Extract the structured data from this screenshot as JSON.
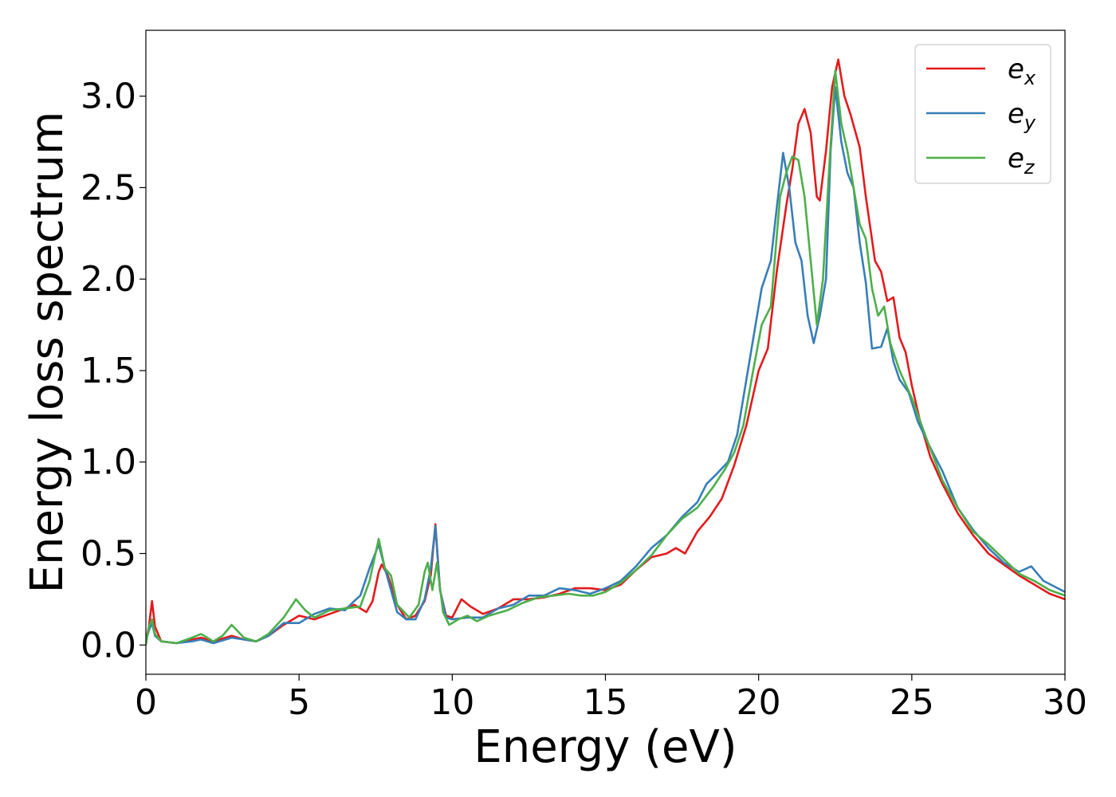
{
  "chart_data": {
    "type": "line",
    "xlabel": "Energy (eV)",
    "ylabel": "Energy loss spectrum",
    "xlim": [
      0,
      30
    ],
    "ylim": [
      -0.16,
      3.36
    ],
    "xticks": [
      0,
      5,
      10,
      15,
      20,
      25,
      30
    ],
    "xtick_labels": [
      "0",
      "5",
      "10",
      "15",
      "20",
      "25",
      "30"
    ],
    "yticks": [
      0.0,
      0.5,
      1.0,
      1.5,
      2.0,
      2.5,
      3.0
    ],
    "ytick_labels": [
      "0.0",
      "0.5",
      "1.0",
      "1.5",
      "2.0",
      "2.5",
      "3.0"
    ],
    "grid": false,
    "legend_position": "top-right",
    "series": [
      {
        "name": "e_x",
        "label_base": "e",
        "label_sub": "x",
        "color": "#e41a1c",
        "points": [
          [
            0,
            0.02
          ],
          [
            0.1,
            0.1
          ],
          [
            0.2,
            0.24
          ],
          [
            0.3,
            0.1
          ],
          [
            0.5,
            0.02
          ],
          [
            1.0,
            0.01
          ],
          [
            1.5,
            0.03
          ],
          [
            1.8,
            0.04
          ],
          [
            2.2,
            0.02
          ],
          [
            2.8,
            0.05
          ],
          [
            3.2,
            0.03
          ],
          [
            3.6,
            0.02
          ],
          [
            4.0,
            0.05
          ],
          [
            4.5,
            0.11
          ],
          [
            5.0,
            0.16
          ],
          [
            5.5,
            0.14
          ],
          [
            6.0,
            0.17
          ],
          [
            6.5,
            0.2
          ],
          [
            6.8,
            0.22
          ],
          [
            7.0,
            0.2
          ],
          [
            7.2,
            0.18
          ],
          [
            7.4,
            0.24
          ],
          [
            7.6,
            0.4
          ],
          [
            7.7,
            0.44
          ],
          [
            7.9,
            0.38
          ],
          [
            8.2,
            0.22
          ],
          [
            8.5,
            0.14
          ],
          [
            8.8,
            0.16
          ],
          [
            9.1,
            0.24
          ],
          [
            9.3,
            0.38
          ],
          [
            9.45,
            0.66
          ],
          [
            9.6,
            0.3
          ],
          [
            9.8,
            0.16
          ],
          [
            10.0,
            0.15
          ],
          [
            10.3,
            0.25
          ],
          [
            10.6,
            0.21
          ],
          [
            11.0,
            0.17
          ],
          [
            11.5,
            0.2
          ],
          [
            12.0,
            0.25
          ],
          [
            12.5,
            0.25
          ],
          [
            13.0,
            0.26
          ],
          [
            13.5,
            0.28
          ],
          [
            14.0,
            0.31
          ],
          [
            14.5,
            0.31
          ],
          [
            15.0,
            0.3
          ],
          [
            15.5,
            0.33
          ],
          [
            16.0,
            0.41
          ],
          [
            16.5,
            0.48
          ],
          [
            17.0,
            0.5
          ],
          [
            17.3,
            0.53
          ],
          [
            17.6,
            0.5
          ],
          [
            18.0,
            0.62
          ],
          [
            18.4,
            0.7
          ],
          [
            18.8,
            0.8
          ],
          [
            19.2,
            0.98
          ],
          [
            19.6,
            1.2
          ],
          [
            20.0,
            1.5
          ],
          [
            20.3,
            1.62
          ],
          [
            20.6,
            2.05
          ],
          [
            20.9,
            2.4
          ],
          [
            21.1,
            2.6
          ],
          [
            21.3,
            2.85
          ],
          [
            21.5,
            2.93
          ],
          [
            21.7,
            2.8
          ],
          [
            21.9,
            2.45
          ],
          [
            22.0,
            2.43
          ],
          [
            22.2,
            2.7
          ],
          [
            22.4,
            3.05
          ],
          [
            22.6,
            3.2
          ],
          [
            22.8,
            3.0
          ],
          [
            23.0,
            2.9
          ],
          [
            23.3,
            2.72
          ],
          [
            23.5,
            2.45
          ],
          [
            23.8,
            2.1
          ],
          [
            24.0,
            2.04
          ],
          [
            24.2,
            1.88
          ],
          [
            24.4,
            1.9
          ],
          [
            24.6,
            1.68
          ],
          [
            24.8,
            1.6
          ],
          [
            25.0,
            1.42
          ],
          [
            25.3,
            1.2
          ],
          [
            25.6,
            1.03
          ],
          [
            26.0,
            0.88
          ],
          [
            26.5,
            0.72
          ],
          [
            27.0,
            0.6
          ],
          [
            27.5,
            0.5
          ],
          [
            28.0,
            0.44
          ],
          [
            28.5,
            0.38
          ],
          [
            29.0,
            0.33
          ],
          [
            29.5,
            0.28
          ],
          [
            30.0,
            0.25
          ]
        ]
      },
      {
        "name": "e_y",
        "label_base": "e",
        "label_sub": "y",
        "color": "#377eb8",
        "points": [
          [
            0,
            0.02
          ],
          [
            0.1,
            0.08
          ],
          [
            0.2,
            0.12
          ],
          [
            0.3,
            0.05
          ],
          [
            0.5,
            0.02
          ],
          [
            1.0,
            0.01
          ],
          [
            1.5,
            0.02
          ],
          [
            1.8,
            0.03
          ],
          [
            2.2,
            0.01
          ],
          [
            2.8,
            0.04
          ],
          [
            3.2,
            0.03
          ],
          [
            3.6,
            0.02
          ],
          [
            4.0,
            0.05
          ],
          [
            4.5,
            0.12
          ],
          [
            5.0,
            0.12
          ],
          [
            5.5,
            0.17
          ],
          [
            6.0,
            0.2
          ],
          [
            6.5,
            0.19
          ],
          [
            6.8,
            0.24
          ],
          [
            7.0,
            0.27
          ],
          [
            7.3,
            0.42
          ],
          [
            7.6,
            0.55
          ],
          [
            7.8,
            0.42
          ],
          [
            8.0,
            0.3
          ],
          [
            8.2,
            0.18
          ],
          [
            8.5,
            0.14
          ],
          [
            8.8,
            0.14
          ],
          [
            9.1,
            0.25
          ],
          [
            9.3,
            0.42
          ],
          [
            9.45,
            0.65
          ],
          [
            9.6,
            0.3
          ],
          [
            9.8,
            0.15
          ],
          [
            10.0,
            0.14
          ],
          [
            10.5,
            0.15
          ],
          [
            11.0,
            0.15
          ],
          [
            11.5,
            0.2
          ],
          [
            12.0,
            0.22
          ],
          [
            12.5,
            0.27
          ],
          [
            13.0,
            0.27
          ],
          [
            13.5,
            0.31
          ],
          [
            14.0,
            0.3
          ],
          [
            14.5,
            0.28
          ],
          [
            15.0,
            0.31
          ],
          [
            15.5,
            0.35
          ],
          [
            16.0,
            0.43
          ],
          [
            16.5,
            0.53
          ],
          [
            17.0,
            0.6
          ],
          [
            17.5,
            0.7
          ],
          [
            18.0,
            0.78
          ],
          [
            18.3,
            0.88
          ],
          [
            18.6,
            0.93
          ],
          [
            19.0,
            1.0
          ],
          [
            19.3,
            1.15
          ],
          [
            19.6,
            1.45
          ],
          [
            19.9,
            1.75
          ],
          [
            20.1,
            1.95
          ],
          [
            20.4,
            2.1
          ],
          [
            20.6,
            2.4
          ],
          [
            20.8,
            2.69
          ],
          [
            21.0,
            2.5
          ],
          [
            21.2,
            2.2
          ],
          [
            21.4,
            2.1
          ],
          [
            21.6,
            1.8
          ],
          [
            21.8,
            1.65
          ],
          [
            22.0,
            1.8
          ],
          [
            22.2,
            2.0
          ],
          [
            22.35,
            2.7
          ],
          [
            22.5,
            3.05
          ],
          [
            22.7,
            2.75
          ],
          [
            22.9,
            2.58
          ],
          [
            23.1,
            2.5
          ],
          [
            23.3,
            2.2
          ],
          [
            23.5,
            1.98
          ],
          [
            23.7,
            1.62
          ],
          [
            24.0,
            1.63
          ],
          [
            24.2,
            1.73
          ],
          [
            24.4,
            1.55
          ],
          [
            24.6,
            1.45
          ],
          [
            24.9,
            1.38
          ],
          [
            25.2,
            1.22
          ],
          [
            25.6,
            1.08
          ],
          [
            26.0,
            0.95
          ],
          [
            26.5,
            0.75
          ],
          [
            27.0,
            0.63
          ],
          [
            27.5,
            0.53
          ],
          [
            28.0,
            0.45
          ],
          [
            28.5,
            0.4
          ],
          [
            28.9,
            0.43
          ],
          [
            29.3,
            0.35
          ],
          [
            30.0,
            0.29
          ]
        ]
      },
      {
        "name": "e_z",
        "label_base": "e",
        "label_sub": "z",
        "color": "#4daf4a",
        "points": [
          [
            0,
            0.0
          ],
          [
            0.1,
            0.1
          ],
          [
            0.2,
            0.14
          ],
          [
            0.3,
            0.06
          ],
          [
            0.5,
            0.02
          ],
          [
            1.0,
            0.01
          ],
          [
            1.5,
            0.04
          ],
          [
            1.8,
            0.06
          ],
          [
            2.2,
            0.02
          ],
          [
            2.5,
            0.05
          ],
          [
            2.8,
            0.11
          ],
          [
            3.2,
            0.04
          ],
          [
            3.6,
            0.02
          ],
          [
            4.0,
            0.06
          ],
          [
            4.5,
            0.15
          ],
          [
            4.9,
            0.25
          ],
          [
            5.2,
            0.19
          ],
          [
            5.5,
            0.15
          ],
          [
            6.0,
            0.19
          ],
          [
            6.5,
            0.2
          ],
          [
            7.0,
            0.21
          ],
          [
            7.3,
            0.35
          ],
          [
            7.6,
            0.58
          ],
          [
            7.8,
            0.42
          ],
          [
            8.0,
            0.38
          ],
          [
            8.2,
            0.22
          ],
          [
            8.6,
            0.15
          ],
          [
            8.9,
            0.22
          ],
          [
            9.1,
            0.4
          ],
          [
            9.2,
            0.45
          ],
          [
            9.35,
            0.3
          ],
          [
            9.5,
            0.45
          ],
          [
            9.7,
            0.18
          ],
          [
            9.9,
            0.11
          ],
          [
            10.2,
            0.14
          ],
          [
            10.5,
            0.16
          ],
          [
            10.8,
            0.13
          ],
          [
            11.2,
            0.16
          ],
          [
            11.8,
            0.19
          ],
          [
            12.3,
            0.23
          ],
          [
            12.8,
            0.26
          ],
          [
            13.3,
            0.27
          ],
          [
            13.8,
            0.28
          ],
          [
            14.2,
            0.27
          ],
          [
            14.6,
            0.27
          ],
          [
            15.0,
            0.29
          ],
          [
            15.5,
            0.34
          ],
          [
            16.0,
            0.41
          ],
          [
            16.5,
            0.49
          ],
          [
            17.0,
            0.6
          ],
          [
            17.5,
            0.69
          ],
          [
            18.0,
            0.75
          ],
          [
            18.5,
            0.86
          ],
          [
            18.9,
            0.96
          ],
          [
            19.2,
            1.05
          ],
          [
            19.5,
            1.2
          ],
          [
            19.8,
            1.48
          ],
          [
            20.1,
            1.75
          ],
          [
            20.4,
            1.85
          ],
          [
            20.7,
            2.45
          ],
          [
            20.9,
            2.58
          ],
          [
            21.1,
            2.67
          ],
          [
            21.3,
            2.65
          ],
          [
            21.5,
            2.45
          ],
          [
            21.7,
            2.1
          ],
          [
            21.9,
            1.75
          ],
          [
            22.1,
            2.0
          ],
          [
            22.3,
            2.6
          ],
          [
            22.5,
            3.14
          ],
          [
            22.7,
            2.85
          ],
          [
            22.9,
            2.7
          ],
          [
            23.1,
            2.5
          ],
          [
            23.3,
            2.3
          ],
          [
            23.5,
            2.22
          ],
          [
            23.7,
            1.95
          ],
          [
            23.9,
            1.8
          ],
          [
            24.1,
            1.85
          ],
          [
            24.3,
            1.65
          ],
          [
            24.6,
            1.5
          ],
          [
            25.0,
            1.35
          ],
          [
            25.5,
            1.12
          ],
          [
            26.0,
            0.9
          ],
          [
            26.5,
            0.75
          ],
          [
            27.0,
            0.62
          ],
          [
            27.5,
            0.55
          ],
          [
            28.0,
            0.47
          ],
          [
            28.5,
            0.39
          ],
          [
            29.0,
            0.35
          ],
          [
            29.5,
            0.3
          ],
          [
            30.0,
            0.27
          ]
        ]
      }
    ]
  }
}
